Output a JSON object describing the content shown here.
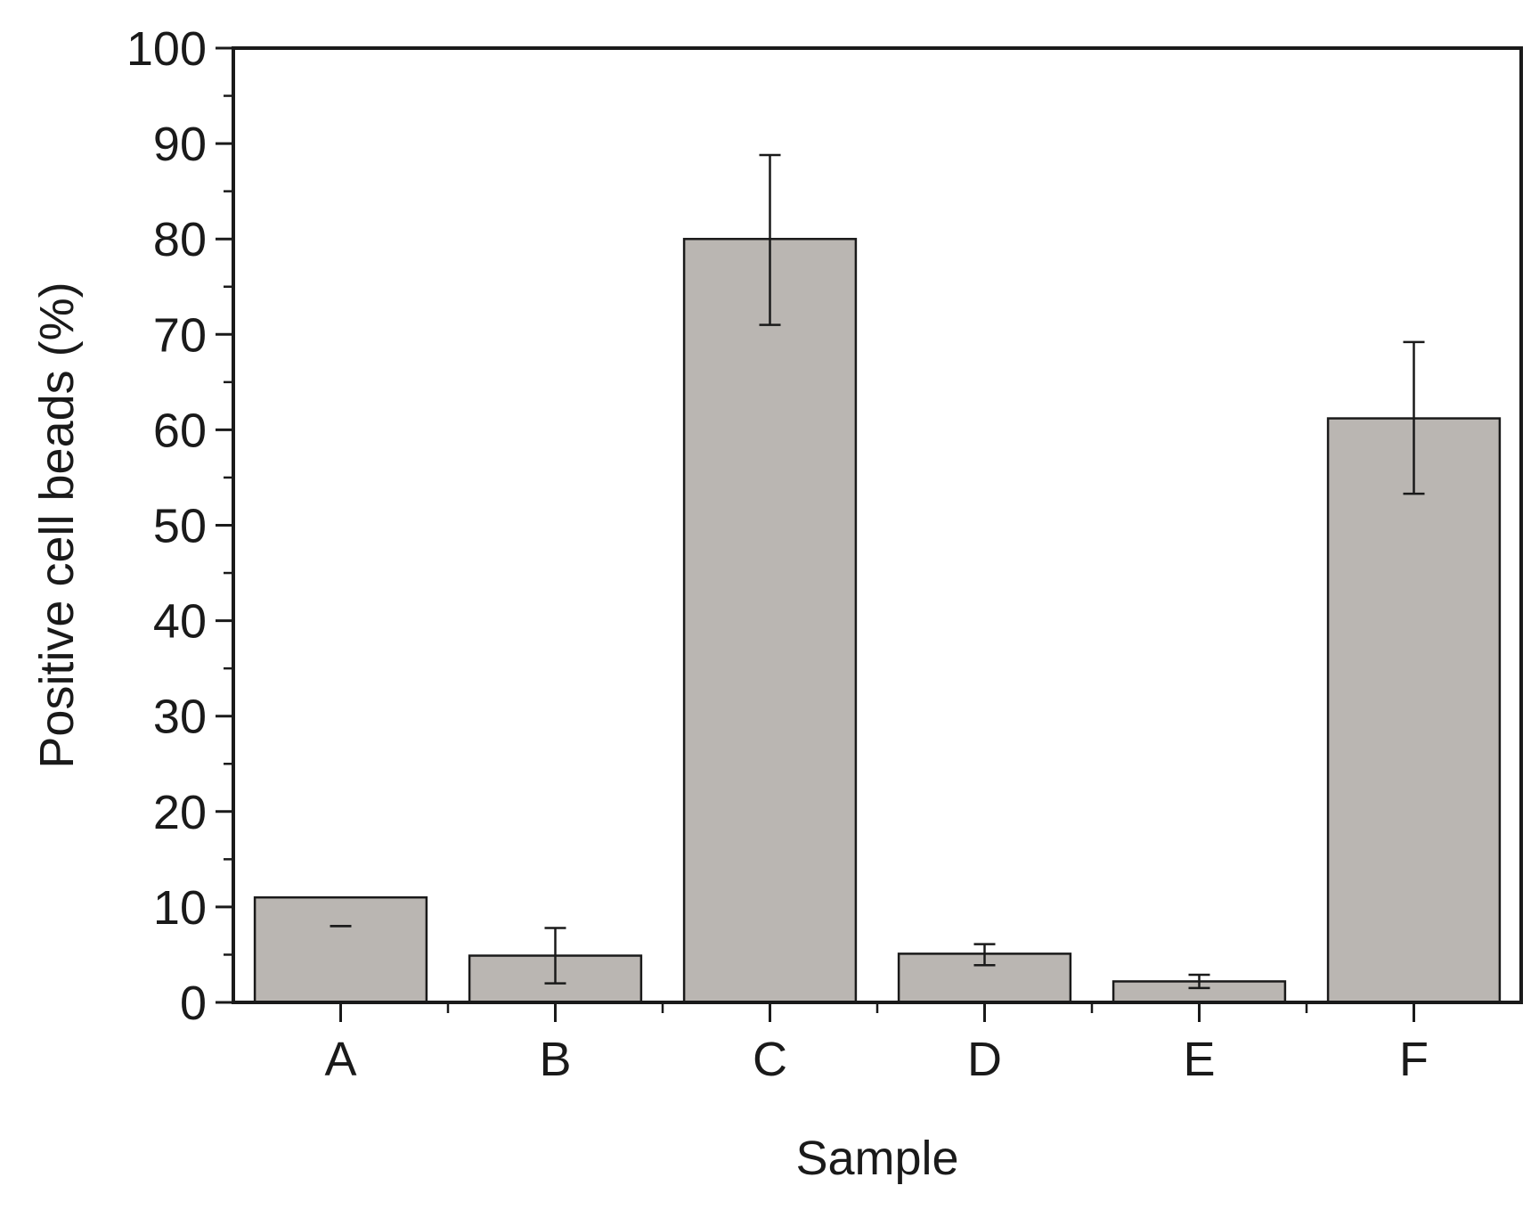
{
  "chart_data": {
    "type": "bar",
    "title": "",
    "xlabel": "Sample",
    "ylabel": "Positive cell beads (%)",
    "categories": [
      "A",
      "B",
      "C",
      "D",
      "E",
      "F"
    ],
    "values": [
      11,
      4.9,
      80,
      5.1,
      2.2,
      61.2
    ],
    "error_bars": [
      {
        "low": 8,
        "high": 8
      },
      {
        "low": 2,
        "high": 7.8
      },
      {
        "low": 71,
        "high": 88.8
      },
      {
        "low": 3.9,
        "high": 6.1
      },
      {
        "low": 1.5,
        "high": 2.9
      },
      {
        "low": 53.3,
        "high": 69.2
      }
    ],
    "ylim": [
      0,
      100
    ],
    "yticks": [
      0,
      10,
      20,
      30,
      40,
      50,
      60,
      70,
      80,
      90,
      100
    ],
    "ytick_labels": [
      "0",
      "10",
      "20",
      "30",
      "40",
      "50",
      "60",
      "70",
      "80",
      "90",
      "100"
    ],
    "grid": false,
    "legend": "none",
    "colors": {
      "bar_fill": "#bab6b2",
      "bar_stroke": "#1a1a1a",
      "axis": "#1a1a1a",
      "error_bar": "#1a1a1a"
    }
  }
}
